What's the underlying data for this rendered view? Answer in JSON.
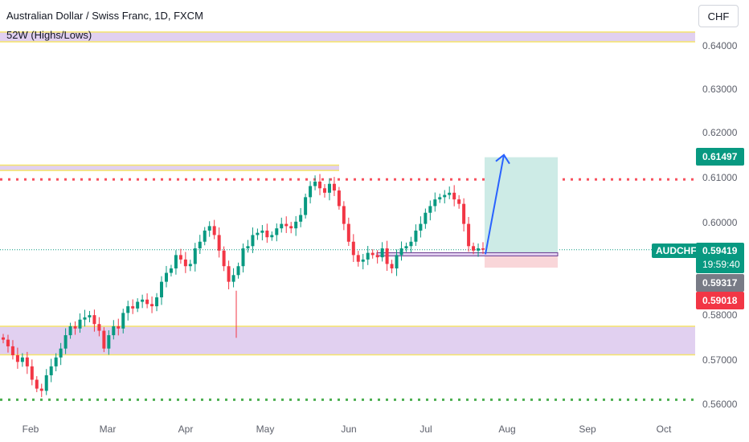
{
  "header": {
    "title": "Australian Dollar / Swiss Franc, 1D, FXCM",
    "indicator": "52W (Highs/Lows)",
    "currency_button": "CHF"
  },
  "price_axis": {
    "ticks": [
      "0.64000",
      "0.63000",
      "0.62000",
      "0.61000",
      "0.60000",
      "0.58000",
      "0.57000",
      "0.56000"
    ]
  },
  "time_axis": {
    "ticks": [
      "Feb",
      "Mar",
      "Apr",
      "May",
      "Jun",
      "Jul",
      "Aug",
      "Sep",
      "Oct"
    ]
  },
  "price_tags": {
    "target": "0.61497",
    "symbol": "AUDCHF",
    "last": "0.59419",
    "countdown": "19:59:40",
    "entry": "0.59317",
    "stop": "0.59018"
  },
  "colors": {
    "up": "#089981",
    "down": "#f23645",
    "zone_fill": "#e1d0f0",
    "zone_border": "#f5e46b",
    "resistance_dots": "#f7525f",
    "support_dots": "#4caf50",
    "target_fill": "#cdebe6",
    "stop_fill": "#f9d6d9",
    "arrow": "#2962ff",
    "entry_tag": "#787b86"
  },
  "chart_data": {
    "type": "candlestick",
    "symbol": "AUDCHF",
    "timeframe": "1D",
    "ylim": [
      0.5597,
      0.6459
    ],
    "x_ticks": [
      "Feb",
      "Mar",
      "Apr",
      "May",
      "Jun",
      "Jul",
      "Aug",
      "Sep",
      "Oct"
    ],
    "candles_close": [
      0.574,
      0.5725,
      0.5705,
      0.569,
      0.57,
      0.568,
      0.565,
      0.563,
      0.5625,
      0.566,
      0.568,
      0.57,
      0.572,
      0.575,
      0.577,
      0.5765,
      0.5785,
      0.579,
      0.5795,
      0.5775,
      0.576,
      0.572,
      0.575,
      0.577,
      0.5765,
      0.58,
      0.5815,
      0.581,
      0.5825,
      0.583,
      0.582,
      0.5815,
      0.5835,
      0.587,
      0.589,
      0.59,
      0.593,
      0.592,
      0.5905,
      0.591,
      0.5945,
      0.596,
      0.5985,
      0.5995,
      0.5975,
      0.594,
      0.5905,
      0.587,
      0.5885,
      0.5905,
      0.5945,
      0.595,
      0.5975,
      0.598,
      0.5985,
      0.597,
      0.5975,
      0.599,
      0.6,
      0.5995,
      0.599,
      0.6005,
      0.602,
      0.606,
      0.6085,
      0.6095,
      0.608,
      0.607,
      0.609,
      0.6075,
      0.604,
      0.6,
      0.596,
      0.593,
      0.5915,
      0.592,
      0.5935,
      0.593,
      0.5925,
      0.5945,
      0.591,
      0.59,
      0.593,
      0.5945,
      0.595,
      0.596,
      0.5985,
      0.6,
      0.6025,
      0.604,
      0.6055,
      0.606,
      0.6065,
      0.607,
      0.6055,
      0.6045,
      0.6,
      0.595,
      0.594,
      0.5945,
      0.5942
    ],
    "last_price": 0.59419,
    "zones": [
      {
        "from": 0.6409,
        "to": 0.6431
      },
      {
        "from": 0.612,
        "to": 0.6132
      },
      {
        "from": 0.5706,
        "to": 0.577
      }
    ],
    "resistance_level": 0.61,
    "support_level": 0.5605,
    "long_position": {
      "entry": 0.59317,
      "target": 0.61497,
      "stop": 0.59018
    }
  }
}
